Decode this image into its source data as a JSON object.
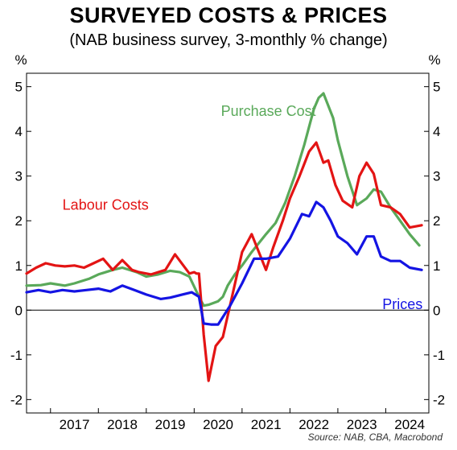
{
  "chart_data": {
    "type": "line",
    "title": "SURVEYED COSTS & PRICES",
    "subtitle": "(NAB business survey, 3-monthly % change)",
    "ylabel_left": "%",
    "ylabel_right": "%",
    "ylim": [
      -2.3,
      5.3
    ],
    "yticks": [
      -2,
      -1,
      0,
      1,
      2,
      3,
      4,
      5
    ],
    "ytick_labels": [
      "-2",
      "-1",
      "0",
      "1",
      "2",
      "3",
      "4",
      "5"
    ],
    "xlim": [
      2016.5,
      2024.9
    ],
    "x_tick_labels": [
      "2017",
      "2018",
      "2019",
      "2020",
      "2021",
      "2022",
      "2023",
      "2024"
    ],
    "x_tick_positions": [
      2017.5,
      2018.5,
      2019.5,
      2020.5,
      2021.5,
      2022.5,
      2023.5,
      2024.5
    ],
    "x_boundaries": [
      2017,
      2018,
      2019,
      2020,
      2021,
      2022,
      2023,
      2024
    ],
    "grid": false,
    "source": "Source: NAB, CBA, Macrobond",
    "series": [
      {
        "name": "Purchase Cost",
        "color": "#5aa95a",
        "label_pos": [
          2021.55,
          4.35
        ],
        "x": [
          2016.5,
          2016.8,
          2017.0,
          2017.3,
          2017.5,
          2017.8,
          2018.0,
          2018.3,
          2018.5,
          2018.8,
          2019.0,
          2019.25,
          2019.5,
          2019.7,
          2019.9,
          2020.1,
          2020.2,
          2020.3,
          2020.5,
          2020.6,
          2020.7,
          2020.85,
          2021.0,
          2021.2,
          2021.5,
          2021.7,
          2021.9,
          2022.1,
          2022.3,
          2022.5,
          2022.6,
          2022.7,
          2022.9,
          2023.0,
          2023.2,
          2023.4,
          2023.6,
          2023.75,
          2023.9,
          2024.1,
          2024.3,
          2024.5,
          2024.7
        ],
        "values": [
          0.55,
          0.56,
          0.6,
          0.55,
          0.6,
          0.7,
          0.8,
          0.9,
          0.95,
          0.85,
          0.75,
          0.8,
          0.88,
          0.85,
          0.75,
          0.3,
          0.1,
          0.12,
          0.2,
          0.3,
          0.55,
          0.8,
          1.0,
          1.3,
          1.7,
          1.95,
          2.4,
          3.0,
          3.7,
          4.5,
          4.75,
          4.85,
          4.3,
          3.8,
          3.0,
          2.35,
          2.5,
          2.7,
          2.65,
          2.3,
          2.0,
          1.7,
          1.45
        ]
      },
      {
        "name": "Labour Costs",
        "color": "#e31414",
        "label_pos": [
          2018.15,
          2.25
        ],
        "x": [
          2016.5,
          2016.7,
          2016.9,
          2017.1,
          2017.3,
          2017.5,
          2017.7,
          2017.9,
          2018.1,
          2018.3,
          2018.5,
          2018.7,
          2018.85,
          2019.1,
          2019.4,
          2019.6,
          2019.9,
          2020.0,
          2020.05,
          2020.1,
          2020.2,
          2020.3,
          2020.45,
          2020.6,
          2020.8,
          2021.0,
          2021.2,
          2021.5,
          2021.65,
          2021.85,
          2022.0,
          2022.2,
          2022.4,
          2022.55,
          2022.7,
          2022.8,
          2022.95,
          2023.1,
          2023.3,
          2023.45,
          2023.6,
          2023.75,
          2023.9,
          2024.1,
          2024.3,
          2024.5,
          2024.75
        ],
        "values": [
          0.82,
          0.95,
          1.05,
          1.0,
          0.98,
          1.0,
          0.95,
          1.05,
          1.15,
          0.9,
          1.12,
          0.9,
          0.85,
          0.8,
          0.9,
          1.25,
          0.82,
          0.85,
          0.82,
          0.82,
          -0.55,
          -1.58,
          -0.8,
          -0.6,
          0.35,
          1.3,
          1.7,
          0.9,
          1.4,
          2.0,
          2.5,
          3.0,
          3.55,
          3.75,
          3.3,
          3.35,
          2.8,
          2.45,
          2.3,
          3.0,
          3.3,
          3.05,
          2.35,
          2.3,
          2.15,
          1.85,
          1.9
        ]
      },
      {
        "name": "Prices",
        "color": "#1414e3",
        "label_pos": [
          2024.35,
          0.02
        ],
        "x": [
          2016.5,
          2016.75,
          2017.0,
          2017.25,
          2017.5,
          2017.75,
          2018.0,
          2018.25,
          2018.5,
          2018.75,
          2019.0,
          2019.3,
          2019.5,
          2019.75,
          2019.95,
          2020.1,
          2020.2,
          2020.35,
          2020.5,
          2020.75,
          2021.0,
          2021.25,
          2021.5,
          2021.75,
          2022.0,
          2022.25,
          2022.4,
          2022.55,
          2022.7,
          2022.85,
          2023.0,
          2023.2,
          2023.4,
          2023.6,
          2023.75,
          2023.9,
          2024.1,
          2024.3,
          2024.5,
          2024.75
        ],
        "values": [
          0.4,
          0.45,
          0.4,
          0.45,
          0.42,
          0.45,
          0.48,
          0.42,
          0.55,
          0.45,
          0.35,
          0.25,
          0.28,
          0.35,
          0.4,
          0.3,
          -0.3,
          -0.32,
          -0.32,
          0.1,
          0.6,
          1.15,
          1.15,
          1.2,
          1.6,
          2.15,
          2.1,
          2.42,
          2.3,
          2.0,
          1.65,
          1.5,
          1.25,
          1.65,
          1.65,
          1.2,
          1.1,
          1.1,
          0.95,
          0.9
        ]
      }
    ]
  }
}
